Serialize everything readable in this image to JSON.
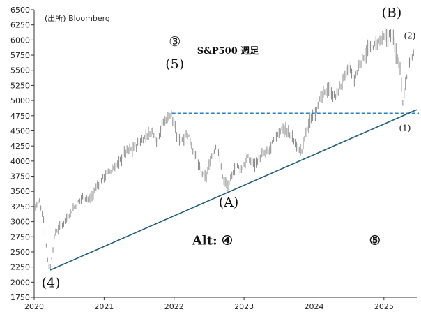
{
  "chart_data": {
    "type": "ohlc",
    "title": "S&P500 週足",
    "source": "(出所)  Bloomberg",
    "y_ticks": [
      1750,
      2000,
      2250,
      2500,
      2750,
      3000,
      3250,
      3500,
      3750,
      4000,
      4250,
      4500,
      4750,
      5000,
      5250,
      5500,
      5750,
      6000,
      6250,
      6500
    ],
    "x_ticks": [
      "2020",
      "2021",
      "2022",
      "2023",
      "2024",
      "2025"
    ],
    "ylim": [
      1750,
      6500
    ],
    "xlim": [
      2020.0,
      2025.47
    ],
    "grid": false,
    "colors": {
      "bars": "#8a8a8a",
      "trendline": "#1f5f7a",
      "resistance": "#2f7fc1"
    },
    "price_path": [
      [
        2020.0,
        3230
      ],
      [
        2020.08,
        3340
      ],
      [
        2020.14,
        3000
      ],
      [
        2020.2,
        2300
      ],
      [
        2020.23,
        2240
      ],
      [
        2020.3,
        2820
      ],
      [
        2020.4,
        2950
      ],
      [
        2020.5,
        3120
      ],
      [
        2020.6,
        3280
      ],
      [
        2020.7,
        3420
      ],
      [
        2020.8,
        3360
      ],
      [
        2020.9,
        3600
      ],
      [
        2021.0,
        3750
      ],
      [
        2021.1,
        3850
      ],
      [
        2021.2,
        3950
      ],
      [
        2021.3,
        4150
      ],
      [
        2021.4,
        4200
      ],
      [
        2021.5,
        4300
      ],
      [
        2021.6,
        4420
      ],
      [
        2021.7,
        4500
      ],
      [
        2021.75,
        4320
      ],
      [
        2021.85,
        4650
      ],
      [
        2021.96,
        4790
      ],
      [
        2022.04,
        4400
      ],
      [
        2022.12,
        4350
      ],
      [
        2022.2,
        4450
      ],
      [
        2022.28,
        4150
      ],
      [
        2022.36,
        3900
      ],
      [
        2022.45,
        3700
      ],
      [
        2022.55,
        4130
      ],
      [
        2022.62,
        4280
      ],
      [
        2022.7,
        3700
      ],
      [
        2022.78,
        3580
      ],
      [
        2022.88,
        3950
      ],
      [
        2022.96,
        3850
      ],
      [
        2023.05,
        4050
      ],
      [
        2023.15,
        3950
      ],
      [
        2023.25,
        4100
      ],
      [
        2023.35,
        4150
      ],
      [
        2023.45,
        4400
      ],
      [
        2023.55,
        4550
      ],
      [
        2023.65,
        4450
      ],
      [
        2023.75,
        4250
      ],
      [
        2023.82,
        4150
      ],
      [
        2023.9,
        4550
      ],
      [
        2024.0,
        4780
      ],
      [
        2024.1,
        5050
      ],
      [
        2024.2,
        5200
      ],
      [
        2024.3,
        5050
      ],
      [
        2024.4,
        5300
      ],
      [
        2024.5,
        5550
      ],
      [
        2024.58,
        5350
      ],
      [
        2024.65,
        5600
      ],
      [
        2024.75,
        5800
      ],
      [
        2024.85,
        5900
      ],
      [
        2024.95,
        6000
      ],
      [
        2025.05,
        6050
      ],
      [
        2025.12,
        6100
      ],
      [
        2025.18,
        5750
      ],
      [
        2025.24,
        5500
      ],
      [
        2025.27,
        4950
      ],
      [
        2025.3,
        5250
      ],
      [
        2025.36,
        5650
      ],
      [
        2025.42,
        5750
      ]
    ],
    "resistance_line": {
      "y": 4790,
      "x_start": 2021.97,
      "x_end": 2025.5
    },
    "trendline": {
      "x_start": 2020.23,
      "y_start": 2200,
      "x_end": 2025.47,
      "y_end": 4850
    },
    "annotations": [
      {
        "text": "③",
        "x": 2022.01,
        "y": 5900,
        "cls": "wave"
      },
      {
        "text": "(5)",
        "x": 2022.01,
        "y": 5530,
        "cls": "wave"
      },
      {
        "text": "(B)",
        "x": 2025.11,
        "y": 6380,
        "cls": "wave"
      },
      {
        "text": "(2)",
        "x": 2025.37,
        "y": 6020,
        "cls": "wave-sm"
      },
      {
        "text": "(1)",
        "x": 2025.3,
        "y": 4500,
        "cls": "wave-sm"
      },
      {
        "text": "(A)",
        "x": 2022.78,
        "y": 3250,
        "cls": "wave"
      },
      {
        "text": "(4)",
        "x": 2020.24,
        "y": 1920,
        "cls": "wave"
      },
      {
        "text": "Alt: ④",
        "x": 2022.55,
        "y": 2620,
        "cls": "alt"
      },
      {
        "text": "⑤",
        "x": 2024.87,
        "y": 2620,
        "cls": "alt"
      }
    ]
  }
}
